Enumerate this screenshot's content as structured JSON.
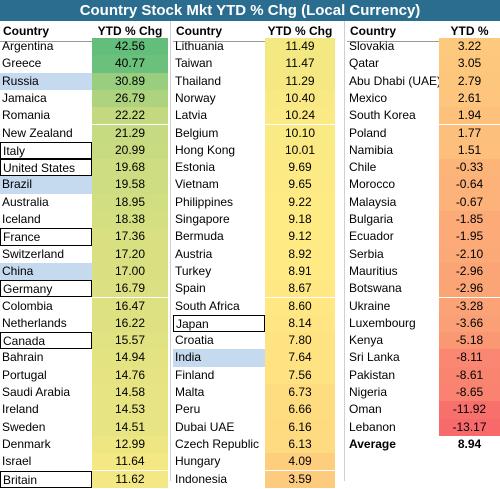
{
  "title": "Country Stock Mkt YTD % Chg (Local Currency)",
  "headers": {
    "country": "Country",
    "value": "YTD % Chg"
  },
  "colors": {
    "title_bg": "#2a6d8e",
    "highlight_fill": "#c5d9ef",
    "scale_high": "#63be7b",
    "scale_mid": "#ffeb84",
    "scale_low": "#f8696b"
  },
  "chart_data": {
    "type": "table",
    "title": "Country Stock Mkt YTD % Chg (Local Currency)",
    "columns": [
      "Country",
      "YTD % Chg"
    ],
    "rows": [
      {
        "country": "Argentina",
        "value": 42.56,
        "display": "42.56",
        "highlight": "none"
      },
      {
        "country": "Greece",
        "value": 40.77,
        "display": "40.77",
        "highlight": "none"
      },
      {
        "country": "Russia",
        "value": 30.89,
        "display": "30.89",
        "highlight": "fill"
      },
      {
        "country": "Jamaica",
        "value": 26.79,
        "display": "26.79",
        "highlight": "none"
      },
      {
        "country": "Romania",
        "value": 22.22,
        "display": "22.22",
        "highlight": "none"
      },
      {
        "country": "New Zealand",
        "value": 21.29,
        "display": "21.29",
        "highlight": "none"
      },
      {
        "country": "Italy",
        "value": 20.99,
        "display": "20.99",
        "highlight": "box"
      },
      {
        "country": "United States",
        "value": 19.68,
        "display": "19.68",
        "highlight": "box"
      },
      {
        "country": "Brazil",
        "value": 19.58,
        "display": "19.58",
        "highlight": "fill"
      },
      {
        "country": "Australia",
        "value": 18.95,
        "display": "18.95",
        "highlight": "none"
      },
      {
        "country": "Iceland",
        "value": 18.38,
        "display": "18.38",
        "highlight": "none"
      },
      {
        "country": "France",
        "value": 17.36,
        "display": "17.36",
        "highlight": "box"
      },
      {
        "country": "Switzerland",
        "value": 17.2,
        "display": "17.20",
        "highlight": "none"
      },
      {
        "country": "China",
        "value": 17.0,
        "display": "17.00",
        "highlight": "fill"
      },
      {
        "country": "Germany",
        "value": 16.79,
        "display": "16.79",
        "highlight": "box"
      },
      {
        "country": "Colombia",
        "value": 16.47,
        "display": "16.47",
        "highlight": "none"
      },
      {
        "country": "Netherlands",
        "value": 16.22,
        "display": "16.22",
        "highlight": "none"
      },
      {
        "country": "Canada",
        "value": 15.57,
        "display": "15.57",
        "highlight": "box"
      },
      {
        "country": "Bahrain",
        "value": 14.94,
        "display": "14.94",
        "highlight": "none"
      },
      {
        "country": "Portugal",
        "value": 14.76,
        "display": "14.76",
        "highlight": "none"
      },
      {
        "country": "Saudi Arabia",
        "value": 14.58,
        "display": "14.58",
        "highlight": "none"
      },
      {
        "country": "Ireland",
        "value": 14.53,
        "display": "14.53",
        "highlight": "none"
      },
      {
        "country": "Sweden",
        "value": 14.51,
        "display": "14.51",
        "highlight": "none"
      },
      {
        "country": "Denmark",
        "value": 12.99,
        "display": "12.99",
        "highlight": "none"
      },
      {
        "country": "Israel",
        "value": 11.64,
        "display": "11.64",
        "highlight": "none"
      },
      {
        "country": "Britain",
        "value": 11.62,
        "display": "11.62",
        "highlight": "box"
      },
      {
        "country": "Lithuania",
        "value": 11.49,
        "display": "11.49",
        "highlight": "none"
      },
      {
        "country": "Taiwan",
        "value": 11.47,
        "display": "11.47",
        "highlight": "none"
      },
      {
        "country": "Thailand",
        "value": 11.29,
        "display": "11.29",
        "highlight": "none"
      },
      {
        "country": "Norway",
        "value": 10.4,
        "display": "10.40",
        "highlight": "none"
      },
      {
        "country": "Latvia",
        "value": 10.24,
        "display": "10.24",
        "highlight": "none"
      },
      {
        "country": "Belgium",
        "value": 10.1,
        "display": "10.10",
        "highlight": "none"
      },
      {
        "country": "Hong Kong",
        "value": 10.01,
        "display": "10.01",
        "highlight": "none"
      },
      {
        "country": "Estonia",
        "value": 9.69,
        "display": "9.69",
        "highlight": "none"
      },
      {
        "country": "Vietnam",
        "value": 9.65,
        "display": "9.65",
        "highlight": "none"
      },
      {
        "country": "Philippines",
        "value": 9.22,
        "display": "9.22",
        "highlight": "none"
      },
      {
        "country": "Singapore",
        "value": 9.18,
        "display": "9.18",
        "highlight": "none"
      },
      {
        "country": "Bermuda",
        "value": 9.12,
        "display": "9.12",
        "highlight": "none"
      },
      {
        "country": "Austria",
        "value": 8.92,
        "display": "8.92",
        "highlight": "none"
      },
      {
        "country": "Turkey",
        "value": 8.91,
        "display": "8.91",
        "highlight": "none"
      },
      {
        "country": "Spain",
        "value": 8.67,
        "display": "8.67",
        "highlight": "none"
      },
      {
        "country": "South Africa",
        "value": 8.6,
        "display": "8.60",
        "highlight": "none"
      },
      {
        "country": "Japan",
        "value": 8.14,
        "display": "8.14",
        "highlight": "box"
      },
      {
        "country": "Croatia",
        "value": 7.8,
        "display": "7.80",
        "highlight": "none"
      },
      {
        "country": "India",
        "value": 7.64,
        "display": "7.64",
        "highlight": "fill"
      },
      {
        "country": "Finland",
        "value": 7.56,
        "display": "7.56",
        "highlight": "none"
      },
      {
        "country": "Malta",
        "value": 6.73,
        "display": "6.73",
        "highlight": "none"
      },
      {
        "country": "Peru",
        "value": 6.66,
        "display": "6.66",
        "highlight": "none"
      },
      {
        "country": "Dubai UAE",
        "value": 6.16,
        "display": "6.16",
        "highlight": "none"
      },
      {
        "country": "Czech Republic",
        "value": 6.13,
        "display": "6.13",
        "highlight": "none"
      },
      {
        "country": "Hungary",
        "value": 4.09,
        "display": "4.09",
        "highlight": "none"
      },
      {
        "country": "Indonesia",
        "value": 3.59,
        "display": "3.59",
        "highlight": "none"
      },
      {
        "country": "Slovakia",
        "value": 3.22,
        "display": "3.22",
        "highlight": "none"
      },
      {
        "country": "Qatar",
        "value": 3.05,
        "display": "3.05",
        "highlight": "none"
      },
      {
        "country": "Abu Dhabi (UAE)",
        "value": 2.79,
        "display": "2.79",
        "highlight": "none"
      },
      {
        "country": "Mexico",
        "value": 2.61,
        "display": "2.61",
        "highlight": "none"
      },
      {
        "country": "South Korea",
        "value": 1.94,
        "display": "1.94",
        "highlight": "none"
      },
      {
        "country": "Poland",
        "value": 1.77,
        "display": "1.77",
        "highlight": "none"
      },
      {
        "country": "Namibia",
        "value": 1.51,
        "display": "1.51",
        "highlight": "none"
      },
      {
        "country": "Chile",
        "value": -0.33,
        "display": "-0.33",
        "highlight": "none"
      },
      {
        "country": "Morocco",
        "value": -0.64,
        "display": "-0.64",
        "highlight": "none"
      },
      {
        "country": "Malaysia",
        "value": -0.67,
        "display": "-0.67",
        "highlight": "none"
      },
      {
        "country": "Bulgaria",
        "value": -1.85,
        "display": "-1.85",
        "highlight": "none"
      },
      {
        "country": "Ecuador",
        "value": -1.95,
        "display": "-1.95",
        "highlight": "none"
      },
      {
        "country": "Serbia",
        "value": -2.1,
        "display": "-2.10",
        "highlight": "none"
      },
      {
        "country": "Mauritius",
        "value": -2.96,
        "display": "-2.96",
        "highlight": "none"
      },
      {
        "country": "Botswana",
        "value": -2.96,
        "display": "-2.96",
        "highlight": "none"
      },
      {
        "country": "Ukraine",
        "value": -3.28,
        "display": "-3.28",
        "highlight": "none"
      },
      {
        "country": "Luxembourg",
        "value": -3.66,
        "display": "-3.66",
        "highlight": "none"
      },
      {
        "country": "Kenya",
        "value": -5.18,
        "display": "-5.18",
        "highlight": "none"
      },
      {
        "country": "Sri Lanka",
        "value": -8.11,
        "display": "-8.11",
        "highlight": "none"
      },
      {
        "country": "Pakistan",
        "value": -8.61,
        "display": "-8.61",
        "highlight": "none"
      },
      {
        "country": "Nigeria",
        "value": -8.65,
        "display": "-8.65",
        "highlight": "none"
      },
      {
        "country": "Oman",
        "value": -11.92,
        "display": "-11.92",
        "highlight": "none"
      },
      {
        "country": "Lebanon",
        "value": -13.17,
        "display": "-13.17",
        "highlight": "none"
      }
    ],
    "average": {
      "label": "Average",
      "value": 8.94,
      "display": "8.94"
    }
  }
}
